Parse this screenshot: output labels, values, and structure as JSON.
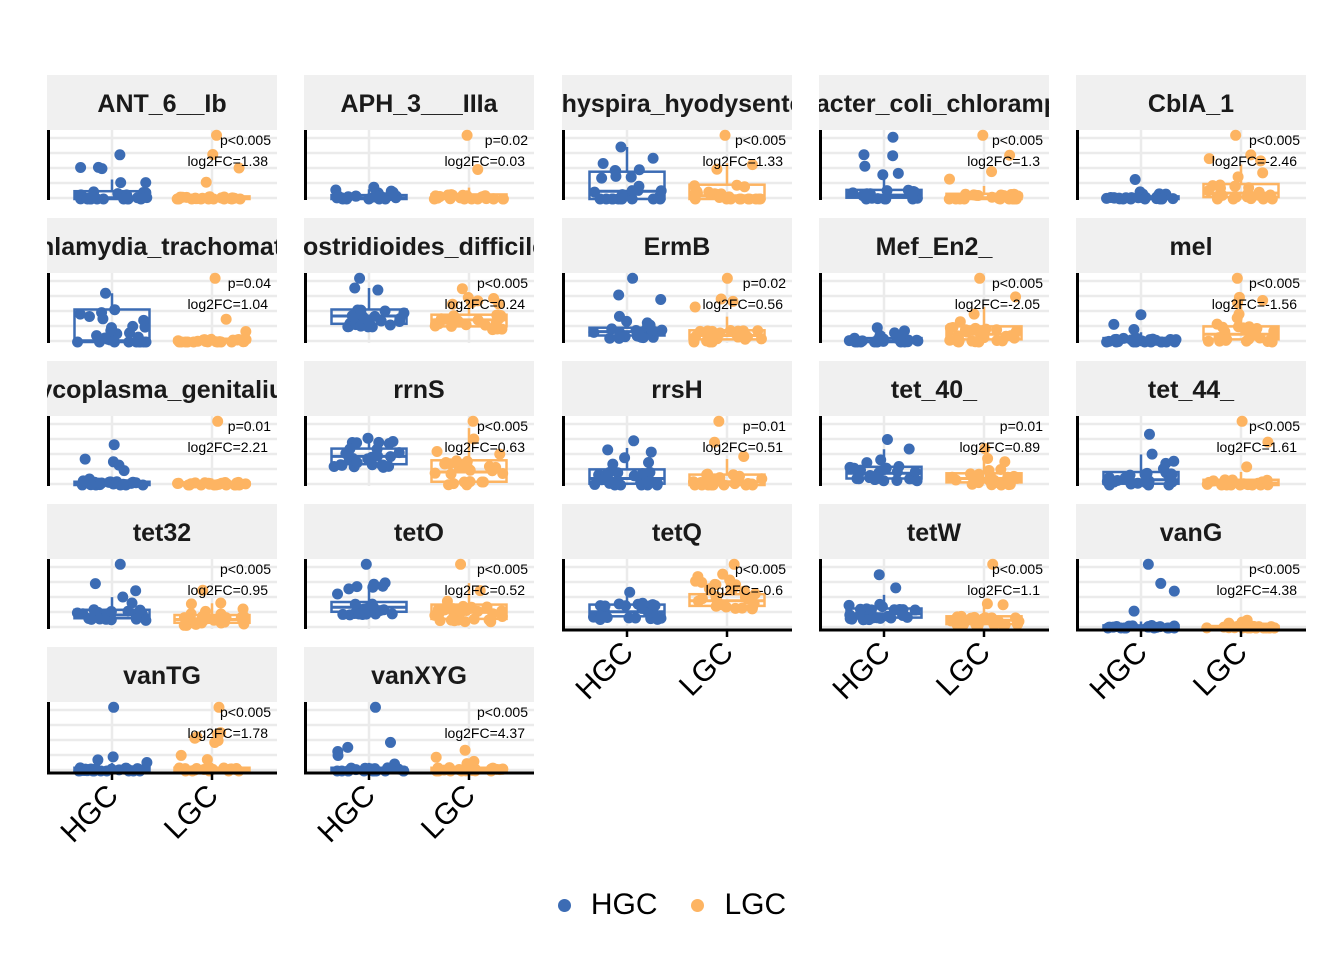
{
  "chart_data": {
    "type": "boxplot-facets",
    "groups": [
      "HGC",
      "LGC"
    ],
    "colors": {
      "HGC": "#3C6CB4",
      "LGC": "#FDB462"
    },
    "legend": {
      "position": "bottom",
      "entries": [
        "HGC",
        "LGC"
      ]
    },
    "panels": [
      {
        "title": "ANT_6__Ib",
        "pval": "p<0.005",
        "lfc": "log2FC=1.38",
        "hgc": {
          "q1": 0.0,
          "med": 0.02,
          "q3": 0.12,
          "max": 0.68
        },
        "lgc": {
          "q1": 0.0,
          "med": 0.01,
          "q3": 0.04,
          "max": 0.98
        }
      },
      {
        "title": "APH_3___IIIa",
        "pval": "p=0.02",
        "lfc": "log2FC=0.03",
        "hgc": {
          "q1": 0.0,
          "med": 0.02,
          "q3": 0.06,
          "max": 0.18
        },
        "lgc": {
          "q1": 0.0,
          "med": 0.02,
          "q3": 0.07,
          "max": 0.98
        }
      },
      {
        "title": "Brachyspira_hyodysenteriae",
        "pval": "p<0.005",
        "lfc": "log2FC=1.33",
        "hgc": {
          "q1": 0.0,
          "med": 0.12,
          "q3": 0.42,
          "max": 0.8
        },
        "lgc": {
          "q1": 0.0,
          "med": 0.05,
          "q3": 0.22,
          "max": 0.98
        }
      },
      {
        "title": "Enterobacter_coli_chloramphenicol",
        "pval": "p<0.005",
        "lfc": "log2FC=1.3",
        "hgc": {
          "q1": 0.02,
          "med": 0.06,
          "q3": 0.14,
          "max": 0.95
        },
        "lgc": {
          "q1": 0.0,
          "med": 0.02,
          "q3": 0.08,
          "max": 0.98
        }
      },
      {
        "title": "CblA_1",
        "pval": "p<0.005",
        "lfc": "log2FC=-2.46",
        "hgc": {
          "q1": 0.0,
          "med": 0.01,
          "q3": 0.04,
          "max": 0.3
        },
        "lgc": {
          "q1": 0.03,
          "med": 0.09,
          "q3": 0.23,
          "max": 0.98
        }
      },
      {
        "title": "Chlamydia_trachomatis",
        "pval": "p=0.04",
        "lfc": "log2FC=1.04",
        "hgc": {
          "q1": 0.0,
          "med": 0.02,
          "q3": 0.5,
          "max": 0.75
        },
        "lgc": {
          "q1": 0.0,
          "med": 0.01,
          "q3": 0.05,
          "max": 0.98
        }
      },
      {
        "title": "Clostridioides_difficile_",
        "pval": "p<0.005",
        "lfc": "log2FC=0.24",
        "hgc": {
          "q1": 0.28,
          "med": 0.4,
          "q3": 0.5,
          "max": 0.98
        },
        "lgc": {
          "q1": 0.24,
          "med": 0.34,
          "q3": 0.42,
          "max": 0.82
        }
      },
      {
        "title": "ErmB",
        "pval": "p=0.02",
        "lfc": "log2FC=0.56",
        "hgc": {
          "q1": 0.1,
          "med": 0.16,
          "q3": 0.22,
          "max": 0.98
        },
        "lgc": {
          "q1": 0.04,
          "med": 0.1,
          "q3": 0.18,
          "max": 0.98
        }
      },
      {
        "title": "Mef_En2_",
        "pval": "p<0.005",
        "lfc": "log2FC=-2.05",
        "hgc": {
          "q1": 0.0,
          "med": 0.02,
          "q3": 0.06,
          "max": 0.22
        },
        "lgc": {
          "q1": 0.04,
          "med": 0.12,
          "q3": 0.24,
          "max": 0.98
        }
      },
      {
        "title": "mel",
        "pval": "p<0.005",
        "lfc": "log2FC=-1.56",
        "hgc": {
          "q1": 0.0,
          "med": 0.02,
          "q3": 0.06,
          "max": 0.42
        },
        "lgc": {
          "q1": 0.04,
          "med": 0.12,
          "q3": 0.24,
          "max": 0.98
        }
      },
      {
        "title": "Mycoplasma_genitalium",
        "pval": "p=0.01",
        "lfc": "log2FC=2.21",
        "hgc": {
          "q1": 0.0,
          "med": 0.01,
          "q3": 0.05,
          "max": 0.62
        },
        "lgc": {
          "q1": 0.0,
          "med": 0.01,
          "q3": 0.04,
          "max": 0.98
        }
      },
      {
        "title": "rrnS",
        "pval": "p<0.005",
        "lfc": "log2FC=0.63",
        "hgc": {
          "q1": 0.32,
          "med": 0.44,
          "q3": 0.56,
          "max": 0.72
        },
        "lgc": {
          "q1": 0.05,
          "med": 0.2,
          "q3": 0.38,
          "max": 0.98
        }
      },
      {
        "title": "rrsH",
        "pval": "p=0.01",
        "lfc": "log2FC=0.51",
        "hgc": {
          "q1": 0.02,
          "med": 0.1,
          "q3": 0.24,
          "max": 0.68
        },
        "lgc": {
          "q1": 0.0,
          "med": 0.05,
          "q3": 0.16,
          "max": 0.98
        }
      },
      {
        "title": "tet_40_",
        "pval": "p=0.01",
        "lfc": "log2FC=0.89",
        "hgc": {
          "q1": 0.1,
          "med": 0.18,
          "q3": 0.28,
          "max": 0.7
        },
        "lgc": {
          "q1": 0.04,
          "med": 0.1,
          "q3": 0.18,
          "max": 0.56
        }
      },
      {
        "title": "tet_44_",
        "pval": "p<0.005",
        "lfc": "log2FC=1.61",
        "hgc": {
          "q1": 0.02,
          "med": 0.08,
          "q3": 0.2,
          "max": 0.78
        },
        "lgc": {
          "q1": 0.0,
          "med": 0.03,
          "q3": 0.08,
          "max": 0.98
        }
      },
      {
        "title": "tet32",
        "pval": "p<0.005",
        "lfc": "log2FC=0.95",
        "hgc": {
          "q1": 0.15,
          "med": 0.2,
          "q3": 0.28,
          "max": 0.98
        },
        "lgc": {
          "q1": 0.08,
          "med": 0.13,
          "q3": 0.2,
          "max": 0.58
        }
      },
      {
        "title": "tetO",
        "pval": "p<0.005",
        "lfc": "log2FC=0.52",
        "hgc": {
          "q1": 0.25,
          "med": 0.32,
          "q3": 0.4,
          "max": 0.98
        },
        "lgc": {
          "q1": 0.14,
          "med": 0.24,
          "q3": 0.36,
          "max": 0.98
        }
      },
      {
        "title": "tetQ",
        "pval": "p<0.005",
        "lfc": "log2FC=-0.6",
        "hgc": {
          "q1": 0.18,
          "med": 0.25,
          "q3": 0.36,
          "max": 0.55
        },
        "lgc": {
          "q1": 0.34,
          "med": 0.42,
          "q3": 0.52,
          "max": 0.98
        }
      },
      {
        "title": "tetW",
        "pval": "p<0.005",
        "lfc": "log2FC=1.1",
        "hgc": {
          "q1": 0.16,
          "med": 0.22,
          "q3": 0.3,
          "max": 0.82
        },
        "lgc": {
          "q1": 0.06,
          "med": 0.12,
          "q3": 0.18,
          "max": 0.98
        }
      },
      {
        "title": "vanG",
        "pval": "p<0.005",
        "lfc": "log2FC=4.38",
        "hgc": {
          "q1": 0.0,
          "med": 0.01,
          "q3": 0.04,
          "max": 0.98
        },
        "lgc": {
          "q1": 0.0,
          "med": 0.01,
          "q3": 0.03,
          "max": 0.12
        }
      },
      {
        "title": "vanTG",
        "pval": "p<0.005",
        "lfc": "log2FC=1.78",
        "hgc": {
          "q1": 0.0,
          "med": 0.01,
          "q3": 0.05,
          "max": 0.98
        },
        "lgc": {
          "q1": 0.0,
          "med": 0.01,
          "q3": 0.05,
          "max": 0.98
        }
      },
      {
        "title": "vanXYG",
        "pval": "p<0.005",
        "lfc": "log2FC=4.37",
        "hgc": {
          "q1": 0.0,
          "med": 0.01,
          "q3": 0.05,
          "max": 0.98
        },
        "lgc": {
          "q1": 0.0,
          "med": 0.01,
          "q3": 0.05,
          "max": 0.32
        }
      }
    ]
  }
}
